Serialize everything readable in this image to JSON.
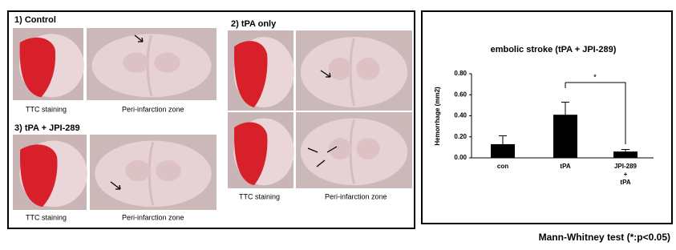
{
  "panels": {
    "control": {
      "title": "1) Control",
      "left_caption": "TTC staining",
      "right_caption": "Peri-infarction zone"
    },
    "jpi": {
      "title": "3) tPA + JPI-289",
      "left_caption": "TTC staining",
      "right_caption": "Peri-infarction zone"
    },
    "tpa": {
      "title": "2) tPA only",
      "left_caption": "TTC staining",
      "right_caption": "Peri-infarction zone"
    }
  },
  "chart_data": {
    "type": "bar",
    "title": "embolic stroke (tPA + JPI-289)",
    "y_label": "Hemorrhage (mm2)",
    "categories": [
      "con",
      "tPA",
      [
        "JPI-289",
        "+",
        "tPA"
      ]
    ],
    "values": [
      0.13,
      0.41,
      0.06
    ],
    "errors": [
      0.08,
      0.12,
      0.02
    ],
    "color": "#000000",
    "ylim": [
      0,
      0.8
    ],
    "yticks": [
      {
        "value": 0,
        "label": "0.00"
      },
      {
        "value": 0.2,
        "label": "0.20"
      },
      {
        "value": 0.4,
        "label": "0.40"
      },
      {
        "value": 0.6,
        "label": "0.60"
      },
      {
        "value": 0.8,
        "label": "0.80"
      }
    ],
    "annotation": "*"
  },
  "footer": "Mann-Whitney test (*:p<0.05)"
}
